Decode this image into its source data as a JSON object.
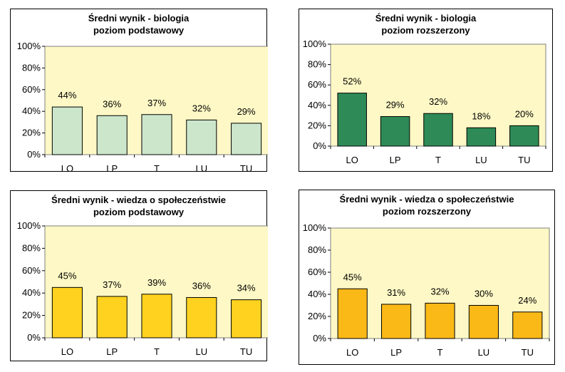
{
  "chart_data": [
    {
      "type": "bar",
      "title": "Średni wynik  - biologia",
      "subtitle": "poziom podstawowy",
      "categories": [
        "LO",
        "LP",
        "T",
        "LU",
        "TU"
      ],
      "values": [
        44,
        36,
        37,
        32,
        29
      ],
      "value_labels": [
        "44%",
        "36%",
        "37%",
        "32%",
        "29%"
      ],
      "y_ticks": [
        "0%",
        "20%",
        "40%",
        "60%",
        "80%",
        "100%"
      ],
      "ylim": [
        0,
        100
      ],
      "bar_color": "#cce6cc",
      "plot_bg": "#fdf8c5",
      "legend": "none",
      "grid": false
    },
    {
      "type": "bar",
      "title": "Średni wynik  - biologia",
      "subtitle": "poziom rozszerzony",
      "categories": [
        "LO",
        "LP",
        "T",
        "LU",
        "TU"
      ],
      "values": [
        52,
        29,
        32,
        18,
        20
      ],
      "value_labels": [
        "52%",
        "29%",
        "32%",
        "18%",
        "20%"
      ],
      "y_ticks": [
        "0%",
        "20%",
        "40%",
        "60%",
        "80%",
        "100%"
      ],
      "ylim": [
        0,
        100
      ],
      "bar_color": "#2e8b57",
      "plot_bg": "#fdf8c5",
      "legend": "none",
      "grid": false
    },
    {
      "type": "bar",
      "title": "Średni wynik  - wiedza o społeczeństwie",
      "subtitle": "poziom podstawowy",
      "categories": [
        "LO",
        "LP",
        "T",
        "LU",
        "TU"
      ],
      "values": [
        45,
        37,
        39,
        36,
        34
      ],
      "value_labels": [
        "45%",
        "37%",
        "39%",
        "36%",
        "34%"
      ],
      "y_ticks": [
        "0%",
        "20%",
        "40%",
        "60%",
        "80%",
        "100%"
      ],
      "ylim": [
        0,
        100
      ],
      "bar_color": "#ffd21f",
      "plot_bg": "#fdf8c5",
      "legend": "none",
      "grid": false
    },
    {
      "type": "bar",
      "title": "Średni wynik  - wiedza o społeczeństwie",
      "subtitle": "poziom rozszerzony",
      "categories": [
        "LO",
        "LP",
        "T",
        "LU",
        "TU"
      ],
      "values": [
        45,
        31,
        32,
        30,
        24
      ],
      "value_labels": [
        "45%",
        "31%",
        "32%",
        "30%",
        "24%"
      ],
      "y_ticks": [
        "0%",
        "20%",
        "40%",
        "60%",
        "80%",
        "100%"
      ],
      "ylim": [
        0,
        100
      ],
      "bar_color": "#fbb917",
      "plot_bg": "#fdf8c5",
      "legend": "none",
      "grid": false
    }
  ]
}
